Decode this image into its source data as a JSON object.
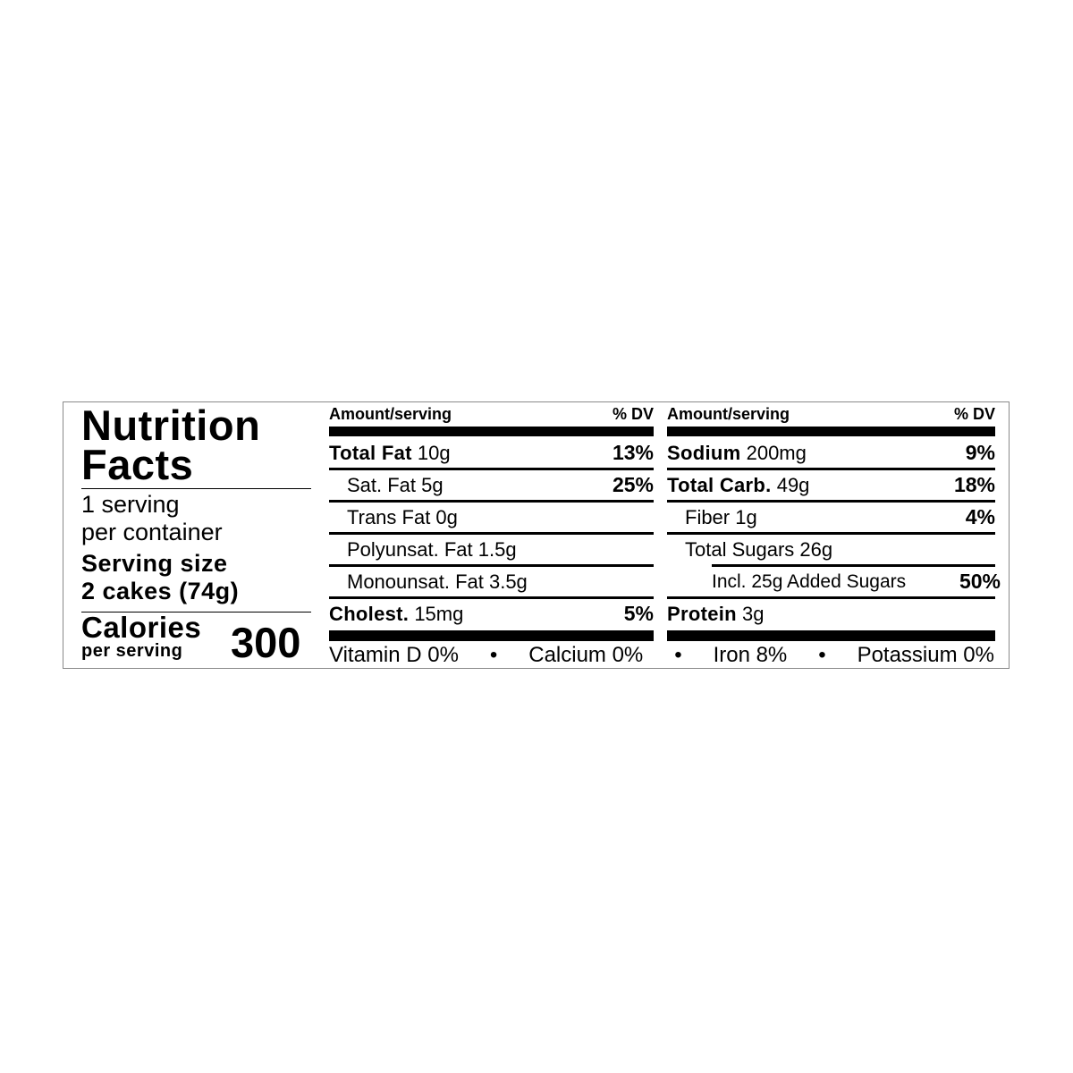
{
  "title": [
    "Nutrition",
    "Facts"
  ],
  "servings_per_container": [
    "1 serving",
    "per container"
  ],
  "serving_size_label": "Serving size",
  "serving_size_value": "2 cakes (74g)",
  "calories_label": "Calories",
  "calories_sub": "per serving",
  "calories_value": "300",
  "header": {
    "amount": "Amount/serving",
    "dv": "% DV"
  },
  "left_rows": [
    {
      "name": "Total Fat",
      "amount": "10g",
      "dv": "13%",
      "bold": true
    },
    {
      "name": "",
      "amount": "Sat. Fat 5g",
      "dv": "25%"
    },
    {
      "name": "",
      "amount": "Trans Fat 0g",
      "dv": ""
    },
    {
      "name": "",
      "amount": "Polyunsat. Fat 1.5g",
      "dv": ""
    },
    {
      "name": "",
      "amount": "Monounsat. Fat 3.5g",
      "dv": ""
    },
    {
      "name": "Cholest.",
      "amount": "15mg",
      "dv": "5%",
      "bold": true
    }
  ],
  "right_rows": [
    {
      "name": "Sodium",
      "amount": "200mg",
      "dv": "9%"
    },
    {
      "name": "Total Carb.",
      "amount": "49g",
      "dv": "18%"
    },
    {
      "name": "",
      "amount": "Fiber 1g",
      "dv": "4%"
    },
    {
      "name": "",
      "amount": "Total Sugars 26g",
      "dv": ""
    },
    {
      "name": "",
      "amount": "Incl. 25g Added Sugars",
      "dv": "50%"
    },
    {
      "name": "Protein",
      "amount": "3g",
      "dv": ""
    }
  ],
  "vitamins": [
    "Vitamin D 0%",
    "•",
    "Calcium 0%",
    "•",
    "Iron 8%",
    "•",
    "Potassium 0%"
  ]
}
